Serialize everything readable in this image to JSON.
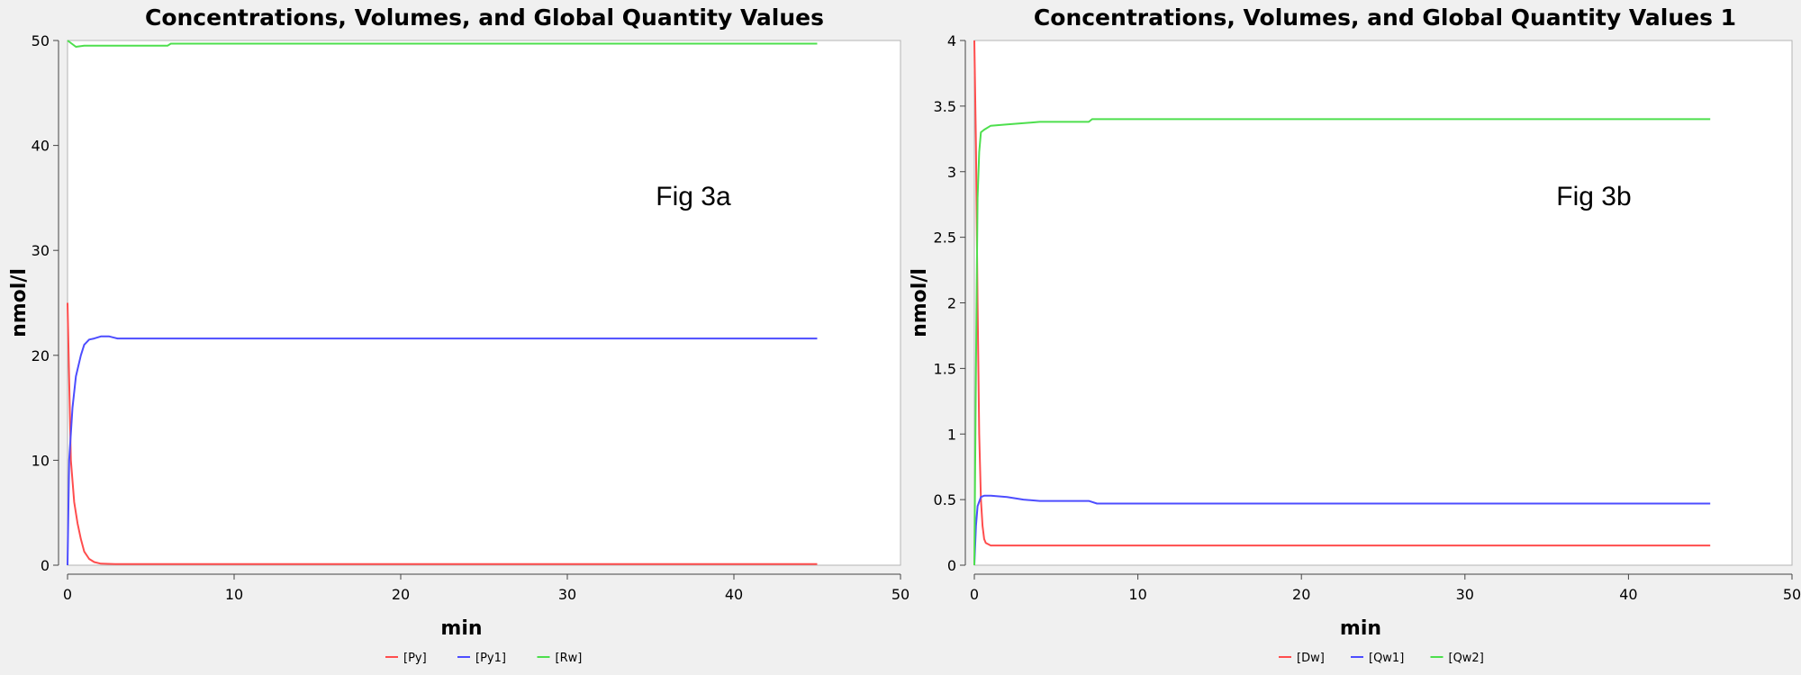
{
  "chart_data": [
    {
      "type": "line",
      "title": "Concentrations, Volumes, and Global Quantity Values",
      "xlabel": "min",
      "ylabel": "nmol/l",
      "xlim": [
        0,
        50
      ],
      "ylim": [
        0,
        50
      ],
      "xticks": [
        0,
        10,
        20,
        30,
        40,
        50
      ],
      "yticks": [
        0,
        10,
        20,
        30,
        40,
        50
      ],
      "annotation": "Fig 3a",
      "grid": false,
      "legend_position": "bottom",
      "series": [
        {
          "name": "[Py]",
          "color": "#ff4d4d",
          "x": [
            0,
            0.2,
            0.4,
            0.6,
            0.8,
            1.0,
            1.3,
            1.6,
            2.0,
            3.0,
            5.0,
            10,
            20,
            30,
            40,
            45
          ],
          "y": [
            25,
            10,
            6,
            4,
            2.5,
            1.3,
            0.6,
            0.3,
            0.15,
            0.1,
            0.1,
            0.1,
            0.1,
            0.1,
            0.1,
            0.1
          ]
        },
        {
          "name": "[Py1]",
          "color": "#4d4dff",
          "x": [
            0,
            0.1,
            0.3,
            0.5,
            0.8,
            1.0,
            1.3,
            1.6,
            2.0,
            2.5,
            3.0,
            5.0,
            10,
            20,
            30,
            40,
            45
          ],
          "y": [
            0,
            10,
            15,
            18,
            20,
            21,
            21.5,
            21.6,
            21.8,
            21.8,
            21.6,
            21.6,
            21.6,
            21.6,
            21.6,
            21.6,
            21.6
          ]
        },
        {
          "name": "[Rw]",
          "color": "#4ddf4d",
          "x": [
            0,
            0.5,
            1.0,
            3.0,
            6.0,
            6.2,
            10,
            20,
            30,
            40,
            45
          ],
          "y": [
            50,
            49.4,
            49.5,
            49.5,
            49.5,
            49.7,
            49.7,
            49.7,
            49.7,
            49.7,
            49.7
          ]
        }
      ]
    },
    {
      "type": "line",
      "title": "Concentrations, Volumes, and Global Quantity Values 1",
      "xlabel": "min",
      "ylabel": "nmol/l",
      "xlim": [
        0,
        50
      ],
      "ylim": [
        0,
        4
      ],
      "xticks": [
        0,
        10,
        20,
        30,
        40,
        50
      ],
      "yticks": [
        0,
        0.5,
        1,
        1.5,
        2,
        2.5,
        3,
        3.5,
        4
      ],
      "annotation": "Fig 3b",
      "grid": false,
      "legend_position": "bottom",
      "series": [
        {
          "name": "[Dw]",
          "color": "#ff4d4d",
          "x": [
            0,
            0.1,
            0.2,
            0.3,
            0.4,
            0.5,
            0.6,
            0.7,
            1.0,
            2.0,
            10,
            20,
            30,
            40,
            45
          ],
          "y": [
            4,
            3.2,
            2.0,
            1.0,
            0.5,
            0.3,
            0.2,
            0.17,
            0.15,
            0.15,
            0.15,
            0.15,
            0.15,
            0.15,
            0.15
          ]
        },
        {
          "name": "[Qw1]",
          "color": "#4d4dff",
          "x": [
            0,
            0.1,
            0.2,
            0.4,
            0.6,
            1.0,
            2.0,
            3.0,
            4.0,
            5.0,
            7.0,
            7.5,
            10,
            20,
            30,
            40,
            45
          ],
          "y": [
            0,
            0.3,
            0.45,
            0.52,
            0.53,
            0.53,
            0.52,
            0.5,
            0.49,
            0.49,
            0.49,
            0.47,
            0.47,
            0.47,
            0.47,
            0.47,
            0.47
          ]
        },
        {
          "name": "[Qw2]",
          "color": "#4ddf4d",
          "x": [
            0,
            0.1,
            0.2,
            0.3,
            0.4,
            0.6,
            1.0,
            2.0,
            4.0,
            7.0,
            7.2,
            10,
            20,
            30,
            40,
            45
          ],
          "y": [
            0,
            1.5,
            2.8,
            3.15,
            3.3,
            3.32,
            3.35,
            3.36,
            3.38,
            3.38,
            3.4,
            3.4,
            3.4,
            3.4,
            3.4,
            3.4
          ]
        }
      ]
    }
  ]
}
